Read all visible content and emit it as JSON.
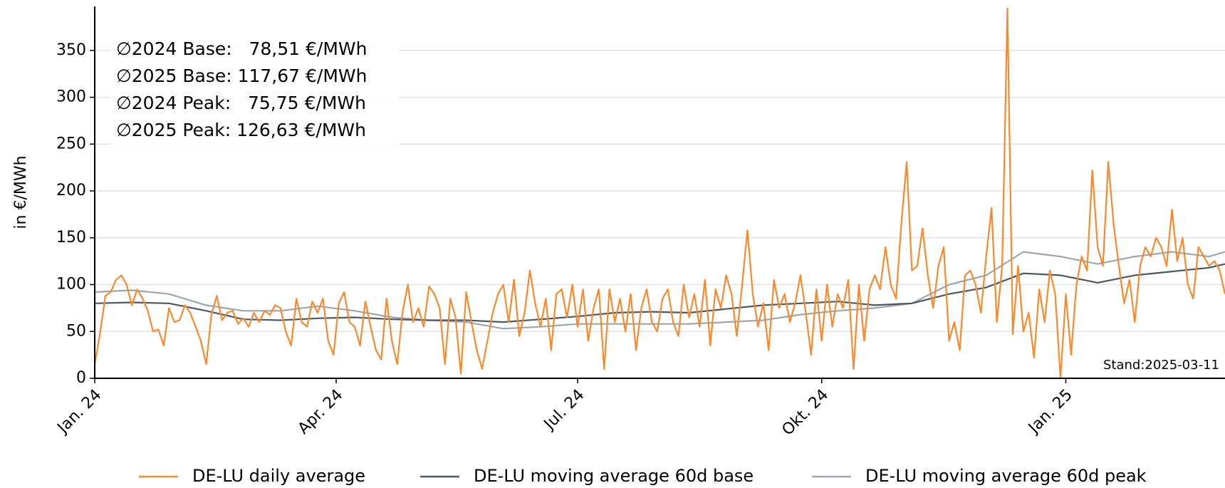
{
  "chart_data": {
    "type": "line",
    "ylabel": "in €/MWh",
    "xlim": [
      0,
      426
    ],
    "ylim": [
      0,
      397
    ],
    "xticks": [
      {
        "value": 0,
        "label": "Jan. 24"
      },
      {
        "value": 91,
        "label": "Apr. 24"
      },
      {
        "value": 182,
        "label": "Jul. 24"
      },
      {
        "value": 274,
        "label": "Okt. 24"
      },
      {
        "value": 366,
        "label": "Jan. 25"
      }
    ],
    "yticks": [
      0,
      50,
      100,
      150,
      200,
      250,
      300,
      350
    ],
    "grid": true,
    "legend": "bottom",
    "annotations": [
      {
        "text": "∅2024 Base:   78,51 €/MWh",
        "color": "#f7913a"
      },
      {
        "text": "∅2025 Base: 117,67 €/MWh",
        "color": "#f7913a"
      },
      {
        "text": "∅2024 Peak:   75,75 €/MWh",
        "color": "#cc6410"
      },
      {
        "text": "∅2025 Peak: 126,63 €/MWh",
        "color": "#cc6410"
      }
    ],
    "note": "Stand:2025-03-11",
    "series": [
      {
        "name": "DE-LU daily average",
        "color": "#f58a2e",
        "x": [
          0,
          2,
          4,
          6,
          8,
          10,
          12,
          14,
          16,
          18,
          20,
          22,
          24,
          26,
          28,
          30,
          32,
          34,
          36,
          38,
          40,
          42,
          44,
          46,
          48,
          50,
          52,
          54,
          56,
          58,
          60,
          62,
          64,
          66,
          68,
          70,
          72,
          74,
          76,
          78,
          80,
          82,
          84,
          86,
          88,
          90,
          92,
          94,
          96,
          98,
          100,
          102,
          104,
          106,
          108,
          110,
          112,
          114,
          116,
          118,
          120,
          122,
          124,
          126,
          128,
          130,
          132,
          134,
          136,
          138,
          140,
          142,
          144,
          146,
          148,
          150,
          152,
          154,
          156,
          158,
          160,
          162,
          164,
          166,
          168,
          170,
          172,
          174,
          176,
          178,
          180,
          182,
          184,
          186,
          188,
          190,
          192,
          194,
          196,
          198,
          200,
          202,
          204,
          206,
          208,
          210,
          212,
          214,
          216,
          218,
          220,
          222,
          224,
          226,
          228,
          230,
          232,
          234,
          236,
          238,
          240,
          242,
          244,
          246,
          248,
          250,
          252,
          254,
          256,
          258,
          260,
          262,
          264,
          266,
          268,
          270,
          272,
          274,
          276,
          278,
          280,
          282,
          284,
          286,
          288,
          290,
          292,
          294,
          296,
          298,
          300,
          302,
          304,
          306,
          308,
          310,
          312,
          314,
          316,
          318,
          320,
          322,
          324,
          326,
          328,
          330,
          332,
          334,
          336,
          338,
          340,
          342,
          344,
          346,
          348,
          350,
          352,
          354,
          356,
          358,
          360,
          362,
          364,
          366,
          368,
          370,
          372,
          374,
          376,
          378,
          380,
          382,
          384,
          386,
          388,
          390,
          392,
          394,
          396,
          398,
          400,
          402,
          404,
          406,
          408,
          410,
          412,
          414,
          416,
          418,
          420,
          422,
          424,
          426
        ],
        "values": [
          15,
          48,
          88,
          92,
          105,
          110,
          100,
          78,
          95,
          85,
          72,
          50,
          52,
          35,
          75,
          60,
          62,
          78,
          70,
          55,
          40,
          15,
          68,
          88,
          62,
          70,
          72,
          58,
          64,
          55,
          70,
          60,
          72,
          68,
          78,
          75,
          50,
          35,
          85,
          60,
          55,
          82,
          70,
          85,
          40,
          25,
          80,
          92,
          60,
          55,
          35,
          82,
          55,
          30,
          20,
          85,
          40,
          15,
          70,
          100,
          60,
          75,
          55,
          98,
          90,
          75,
          15,
          85,
          65,
          5,
          92,
          60,
          30,
          10,
          40,
          70,
          90,
          100,
          60,
          105,
          45,
          70,
          115,
          80,
          55,
          85,
          30,
          90,
          95,
          65,
          100,
          55,
          95,
          40,
          75,
          95,
          10,
          95,
          60,
          85,
          50,
          90,
          30,
          75,
          95,
          60,
          50,
          85,
          95,
          60,
          45,
          100,
          65,
          90,
          55,
          105,
          35,
          95,
          75,
          110,
          90,
          45,
          100,
          158,
          90,
          55,
          80,
          30,
          105,
          75,
          90,
          60,
          80,
          110,
          70,
          25,
          95,
          40,
          100,
          55,
          90,
          75,
          105,
          10,
          100,
          40,
          95,
          110,
          95,
          140,
          100,
          85,
          165,
          231,
          115,
          120,
          160,
          110,
          75,
          120,
          140,
          40,
          60,
          30,
          110,
          115,
          100,
          70,
          130,
          182,
          60,
          120,
          395,
          47,
          120,
          50,
          70,
          22,
          95,
          60,
          115,
          90,
          0,
          90,
          25,
          100,
          130,
          115,
          222,
          140,
          120,
          231,
          165,
          120,
          80,
          105,
          60,
          120,
          140,
          130,
          150,
          140,
          120,
          180,
          125,
          150,
          100,
          85,
          140,
          130,
          120,
          125,
          115,
          90
        ]
      },
      {
        "name": "DE-LU moving average 60d base",
        "color": "#4a5863",
        "x": [
          0,
          14,
          28,
          42,
          56,
          70,
          84,
          98,
          112,
          126,
          140,
          154,
          168,
          182,
          196,
          210,
          224,
          238,
          252,
          266,
          280,
          294,
          308,
          322,
          336,
          350,
          364,
          378,
          392,
          406,
          420,
          426
        ],
        "values": [
          80,
          81,
          80,
          72,
          63,
          62,
          64,
          65,
          63,
          62,
          62,
          60,
          63,
          66,
          70,
          71,
          70,
          74,
          78,
          80,
          82,
          78,
          80,
          90,
          97,
          112,
          110,
          102,
          110,
          114,
          118,
          122
        ]
      },
      {
        "name": "DE-LU moving average 60d peak",
        "color": "#9aa6b0",
        "x": [
          0,
          14,
          28,
          42,
          56,
          70,
          84,
          98,
          112,
          126,
          140,
          154,
          168,
          182,
          196,
          210,
          224,
          238,
          252,
          266,
          280,
          294,
          308,
          322,
          336,
          350,
          364,
          378,
          392,
          406,
          420,
          426
        ],
        "values": [
          92,
          94,
          90,
          78,
          72,
          72,
          77,
          72,
          65,
          62,
          60,
          53,
          55,
          58,
          58,
          58,
          58,
          60,
          62,
          68,
          72,
          75,
          80,
          100,
          110,
          135,
          130,
          122,
          130,
          135,
          130,
          135
        ]
      }
    ]
  }
}
